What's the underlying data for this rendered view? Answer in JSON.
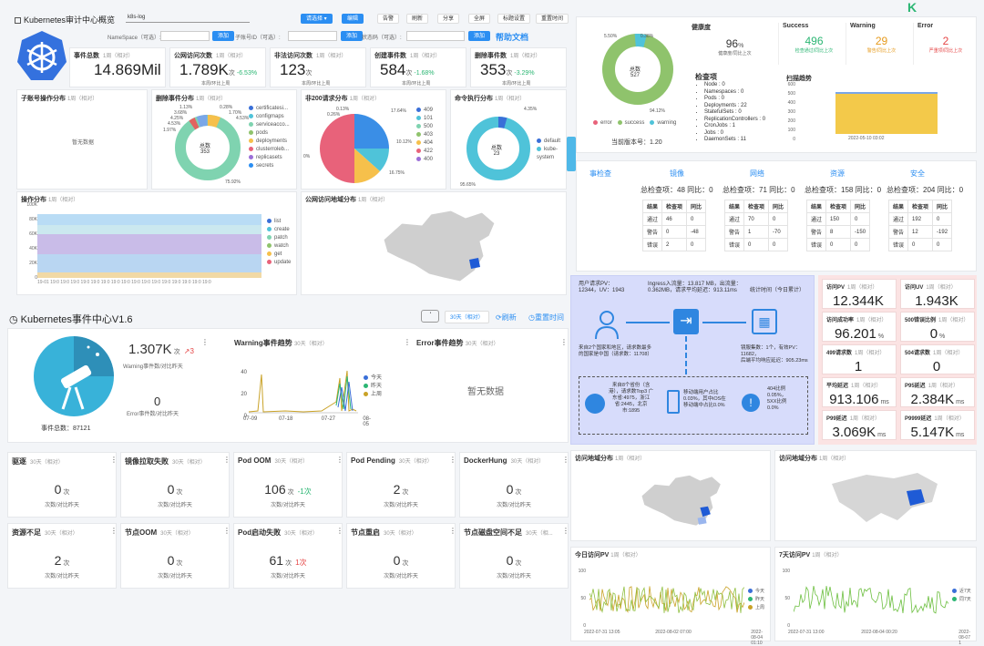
{
  "audit": {
    "title": "Kubernetes审计中心概览",
    "cluster_tag": "k8s-log",
    "toolbar": {
      "select": "请选择",
      "edit": "编辑",
      "alert": "告警",
      "refresh": "刷新",
      "share": "分享",
      "fullscreen": "全屏",
      "tag_settings": "标题设置",
      "reset_time": "重置时间"
    },
    "filters": {
      "namespace": "NameSpace（可选）:",
      "sub_account": "子账号ID（可选）:",
      "status_code": "状态码（可选）:",
      "add": "添加",
      "help": "帮助文档"
    },
    "kpis": [
      {
        "title": "事件总数",
        "period": "1周（相对）",
        "value": "14.869Mil",
        "unit": "",
        "delta": "",
        "note": ""
      },
      {
        "title": "公网访问次数",
        "period": "1周（相对）",
        "value": "1.789K",
        "unit": "次",
        "delta": "-6.53%",
        "note": "本周/环比上周"
      },
      {
        "title": "非法访问次数",
        "period": "1周（相对）",
        "value": "123",
        "unit": "次",
        "delta": "",
        "note": "本周/环比上周"
      },
      {
        "title": "创建事件数",
        "period": "1周（相对）",
        "value": "584",
        "unit": "次",
        "delta": "-1.68%",
        "note": "本周/环比上周"
      },
      {
        "title": "删除事件数",
        "period": "1周（相对）",
        "value": "353",
        "unit": "次",
        "delta": "-3.29%",
        "note": "本周/环比上周"
      }
    ],
    "subaccount_panel": {
      "title": "子账号操作分布",
      "period": "1周（相对）",
      "empty": "暂无数据"
    },
    "delete_panel": {
      "title": "删除事件分布",
      "period": "1周（相对）",
      "center_label": "总数",
      "center_value": "353",
      "labels": [
        "1.13%",
        "3.68%",
        "4.25%",
        "4.53%",
        "1.97%",
        "0.28%",
        "1.70%",
        "4.53%",
        "75.92%"
      ],
      "legend": [
        "certificatesi...",
        "configmaps",
        "serviceacco...",
        "pods",
        "deployments",
        "clusterroleb...",
        "replicasets",
        "secrets"
      ]
    },
    "non200_panel": {
      "title": "非200请求分布",
      "period": "1周（相对）",
      "labels": [
        "0.13%",
        "0.26%",
        "17.64%",
        "10.12%",
        "16.75%",
        "0%"
      ],
      "legend": [
        "409",
        "101",
        "500",
        "403",
        "404",
        "422",
        "400"
      ]
    },
    "cmd_panel": {
      "title": "命令执行分布",
      "period": "1周（相对）",
      "center_label": "总数",
      "center_value": "23",
      "labels": [
        "4.35%",
        "95.65%"
      ],
      "legend": [
        "default",
        "kube-system"
      ]
    },
    "ops_panel": {
      "title": "操作分布",
      "period": "1周（相对）",
      "y_ticks": [
        "100K",
        "80K",
        "60K",
        "40K",
        "20K",
        "0"
      ],
      "legend": [
        "list",
        "create",
        "patch",
        "watch",
        "get",
        "update"
      ]
    },
    "geo_panel": {
      "title": "公网访问地域分布",
      "period": "1周（相对）"
    }
  },
  "events": {
    "title": "Kubernetes事件中心V1.6",
    "range": "30天（相对）",
    "refresh": "刷新",
    "reset": "重置时间",
    "total_label": "事件总数：87121",
    "warning_value": "1.307K",
    "warning_unit": "次",
    "warning_delta": "3",
    "warning_label": "Warning事件数/对比昨天",
    "error_value": "0",
    "error_label": "Error事件数/对比昨天",
    "trend_title": "Warning事件趋势",
    "trend_period": "30天（相对）",
    "error_trend_title": "Error事件趋势",
    "error_empty": "暂无数据",
    "trend_legend": [
      "今天",
      "昨天",
      "上周"
    ],
    "trend_x": [
      "07-09",
      "07-18",
      "07-27",
      "08-05"
    ],
    "trend_y": [
      "40",
      "20",
      "0"
    ]
  },
  "event_cards": [
    {
      "title": "驱逐",
      "period": "30天（相对）",
      "value": "0",
      "unit": "次",
      "delta": "",
      "note": "次数/对比昨天"
    },
    {
      "title": "镜像拉取失败",
      "period": "30天（相对）",
      "value": "0",
      "unit": "次",
      "delta": "",
      "note": "次数/对比昨天"
    },
    {
      "title": "Pod OOM",
      "period": "30天（相对）",
      "value": "106",
      "unit": "次",
      "delta": "-1次",
      "note": "次数/对比昨天"
    },
    {
      "title": "Pod Pending",
      "period": "30天（相对）",
      "value": "2",
      "unit": "次",
      "delta": "",
      "note": "次数/对比昨天"
    },
    {
      "title": "DockerHung",
      "period": "30天（相对）",
      "value": "0",
      "unit": "次",
      "delta": "",
      "note": "次数/对比昨天"
    },
    {
      "title": "资源不足",
      "period": "30天（相对）",
      "value": "2",
      "unit": "次",
      "delta": "",
      "note": "次数/对比昨天"
    },
    {
      "title": "节点OOM",
      "period": "30天（相对）",
      "value": "0",
      "unit": "次",
      "delta": "",
      "note": "次数/对比昨天"
    },
    {
      "title": "Pod启动失败",
      "period": "30天（相对）",
      "value": "61",
      "unit": "次",
      "delta": "1次",
      "note": "次数/对比昨天"
    },
    {
      "title": "节点重启",
      "period": "30天（相对）",
      "value": "0",
      "unit": "次",
      "delta": "",
      "note": "次数/对比昨天"
    },
    {
      "title": "节点磁盘空间不足",
      "period": "30天（相...",
      "value": "0",
      "unit": "次",
      "delta": "",
      "note": "次数/对比昨天"
    }
  ],
  "inspect": {
    "donut_labels": [
      "5.50%",
      "0.38%",
      "94.12%"
    ],
    "center_label": "总数",
    "center_value": "527",
    "legend": [
      "error",
      "success",
      "warning"
    ],
    "version": "当前版本号：1.20",
    "health_title": "健康度",
    "health_value": "96",
    "health_unit": "%",
    "health_note": "健康度/同比上次",
    "success_title": "Success",
    "success_value": "496",
    "success_note": "检查通过/同比上次",
    "warning_title": "Warning",
    "warning_value": "29",
    "warning_note": "警告/同比上次",
    "error_title": "Error",
    "error_value": "2",
    "error_note": "严重项/同比上次",
    "items_title": "检查项",
    "items": [
      "Node : 0",
      "Namespaces : 0",
      "Pods : 0",
      "Deployments : 22",
      "StatefulSets : 0",
      "ReplicationControllers : 0",
      "CronJobs : 1",
      "Jobs : 0",
      "DaemonSets : 11"
    ],
    "scan_title": "扫描趋势",
    "scan_y": [
      "600",
      "500",
      "400",
      "300",
      "200",
      "100",
      "0"
    ],
    "scan_x": "2022-05-10 03:02"
  },
  "checks": {
    "headers": [
      "事检查",
      "镜像",
      "网络",
      "资源",
      "安全"
    ],
    "totals": [
      "总检查项：48 同比：0",
      "总检查项：71 同比：0",
      "总检查项：158 同比：0",
      "总检查项：204 同比：0"
    ],
    "tables": [
      [
        [
          "结果",
          "检查项",
          "同比"
        ],
        [
          "通过",
          "46",
          "0"
        ],
        [
          "警告",
          "0",
          "-48"
        ],
        [
          "错误",
          "2",
          "0"
        ]
      ],
      [
        [
          "结果",
          "检查项",
          "同比"
        ],
        [
          "通过",
          "70",
          "0"
        ],
        [
          "警告",
          "1",
          "-70"
        ],
        [
          "错误",
          "0",
          "0"
        ]
      ],
      [
        [
          "结果",
          "检查项",
          "同比"
        ],
        [
          "通过",
          "150",
          "0"
        ],
        [
          "警告",
          "8",
          "-150"
        ],
        [
          "错误",
          "0",
          "0"
        ]
      ],
      [
        [
          "结果",
          "检查项",
          "同比"
        ],
        [
          "通过",
          "192",
          "0"
        ],
        [
          "警告",
          "12",
          "-192"
        ],
        [
          "错误",
          "0",
          "0"
        ]
      ]
    ]
  },
  "flow": {
    "req": "用户请求PV：\n12344，UV：1943",
    "ingress": "Ingress入流量：13.817 MB，出流量：\n0.362MB，请求平均延迟：913.11ms",
    "stat_time": "统计时间（今日累计）",
    "region": "来自2个国家和地区，请求数最多\n的国家是中国（请求数：11708）",
    "mirror": "镜服集数：1个，有效PV：11682，\n后端平均响应延迟：905.23ms",
    "province": "来自8个省份（含\n港），请求数Top3 广\n东省:4975，浙江\n省:2445，北京\n市:1895",
    "mobile": "移动端用户占比\n0.03%，其中iOS在\n移动端中占比0.0%",
    "errors": "404比例\n0.05%，\n5XX比例\n0.0%"
  },
  "metrics": [
    {
      "title": "访问PV",
      "period": "1周（相对）",
      "value": "12.344K",
      "unit": ""
    },
    {
      "title": "访问UV",
      "period": "1周（相对）",
      "value": "1.943K",
      "unit": ""
    },
    {
      "title": "访问成功率",
      "period": "1周（相对）",
      "value": "96.201",
      "unit": "%"
    },
    {
      "title": "500错误比例",
      "period": "1周（相对）",
      "value": "0",
      "unit": "%"
    },
    {
      "title": "499请求数",
      "period": "1周（相对）",
      "value": "1",
      "unit": ""
    },
    {
      "title": "504请求数",
      "period": "1周（相对）",
      "value": "0",
      "unit": ""
    },
    {
      "title": "平均延迟",
      "period": "1周（相对）",
      "value": "913.106",
      "unit": "ms"
    },
    {
      "title": "P95延迟",
      "period": "1周（相对）",
      "value": "2.384K",
      "unit": "ms"
    },
    {
      "title": "P99延迟",
      "period": "1周（相对）",
      "value": "3.069K",
      "unit": "ms"
    },
    {
      "title": "P9999延迟",
      "period": "1周（相对）",
      "value": "5.147K",
      "unit": "ms"
    }
  ],
  "bottom": {
    "geo1_title": "访问地域分布",
    "geo1_period": "1周（相对）",
    "geo2_title": "访问地域分布",
    "geo2_period": "1周（相对）",
    "pv_today_title": "今日访问PV",
    "pv_today_period": "1周（相对）",
    "pv_today_y": [
      "100",
      "50",
      "0"
    ],
    "pv_today_x": [
      "2022-07-31 13:05",
      "2022-08-02 07:00",
      "2022-08-04 01:10"
    ],
    "pv_today_legend": [
      "今天",
      "昨天",
      "上周"
    ],
    "pv_week_title": "7天访问PV",
    "pv_week_period": "1周（相对）",
    "pv_week_y": [
      "100",
      "50",
      "0"
    ],
    "pv_week_x": [
      "2022-07-31 13:00",
      "2022-08-04 00:20",
      "2022-08-07 1"
    ],
    "pv_week_legend": [
      "近7天",
      "同7天"
    ]
  }
}
